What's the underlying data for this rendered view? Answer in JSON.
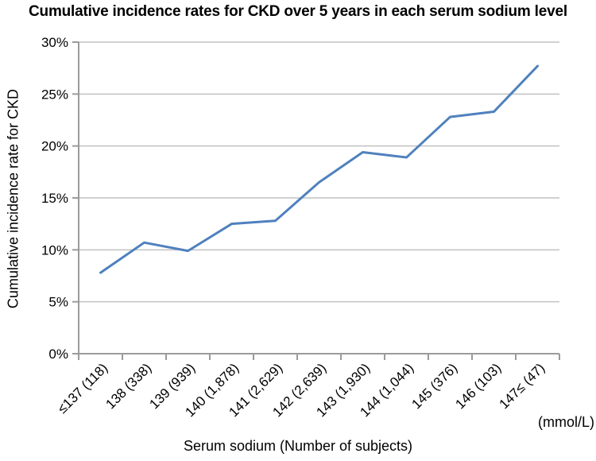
{
  "chart_data": {
    "type": "line",
    "title": "Cumulative incidence rates for CKD over 5 years in each serum sodium level",
    "xlabel": "Serum sodium (Number of subjects)",
    "ylabel": "Cumulative incidence rate for CKD",
    "unit_label": "(mmol/L)",
    "categories": [
      "≤137 (118)",
      "138 (338)",
      "139 (939)",
      "140 (1,878)",
      "141 (2,629)",
      "142 (2,639)",
      "143 (1,930)",
      "144 (1,044)",
      "145 (376)",
      "146 (103)",
      "147≤ (47)"
    ],
    "series": [
      {
        "name": "Cumulative incidence rate for CKD",
        "values": [
          7.8,
          10.7,
          9.9,
          12.5,
          12.8,
          16.5,
          19.4,
          18.9,
          22.8,
          23.3,
          27.7
        ]
      }
    ],
    "ylim": [
      0,
      30
    ],
    "y_tick_step": 5,
    "y_tick_labels": [
      "0%",
      "5%",
      "10%",
      "15%",
      "20%",
      "25%",
      "30%"
    ],
    "grid": true,
    "legend": "none",
    "line_color": "#4F81BD",
    "gridline_color": "#C2C2C2",
    "axis_color": "#9B9B9B",
    "text_color": "#000000"
  }
}
